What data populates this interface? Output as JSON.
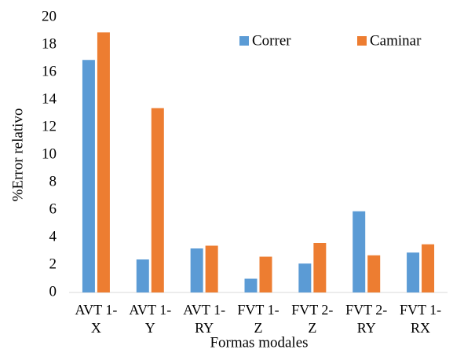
{
  "chart_data": {
    "type": "bar",
    "x_label": "Formas modales",
    "y_label": "%Error relativo",
    "categories": [
      "AVT 1-X",
      "AVT 1-Y",
      "AVT 1-RY",
      "FVT 1-Z",
      "FVT 2-Z",
      "FVT 2-RY",
      "FVT 1-RX"
    ],
    "series": [
      {
        "name": "Correr",
        "color": "#5b9bd5",
        "values": [
          16.9,
          2.4,
          3.2,
          1.0,
          2.1,
          5.9,
          2.9
        ]
      },
      {
        "name": "Caminar",
        "color": "#ed7d31",
        "values": [
          18.9,
          13.4,
          3.4,
          2.6,
          3.6,
          2.7,
          3.5
        ]
      }
    ],
    "ylim": [
      0,
      20
    ],
    "yticks": [
      0,
      2,
      4,
      6,
      8,
      10,
      12,
      14,
      16,
      18,
      20
    ],
    "grid": false,
    "legend": "top-right"
  }
}
